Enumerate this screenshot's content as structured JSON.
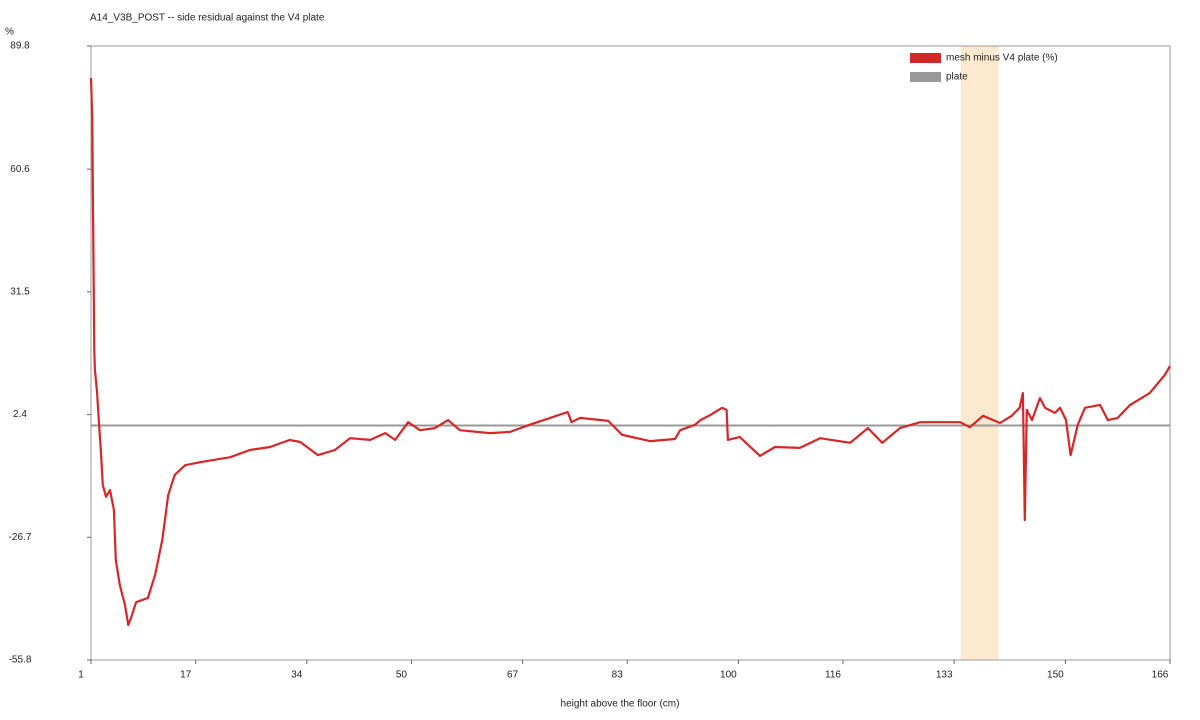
{
  "chart_data": {
    "type": "line",
    "title": "A14_V3B_POST -- side residual against the V4 plate",
    "x_label": "height above the floor (cm)",
    "y_label": "%",
    "xlim": [
      1,
      166
    ],
    "xticks": [
      1,
      17,
      34,
      50,
      67,
      83,
      100,
      116,
      133,
      150,
      166
    ],
    "ylim": [
      -55.8,
      89.8
    ],
    "yticks": [
      -55.8,
      -26.7,
      2.4,
      31.5,
      60.6,
      89.8
    ],
    "highlight": {
      "range": [
        134,
        139.8
      ],
      "color": "#fde9cf"
    },
    "reference_line": {
      "name": "plate",
      "value": -0.2,
      "color": "#999999"
    },
    "legend": "top-right",
    "x": [
      1.0,
      1.2,
      1.3,
      1.5,
      1.6,
      1.9,
      2.2,
      2.5,
      2.8,
      3.3,
      3.9,
      4.5,
      4.8,
      5.4,
      6.2,
      6.7,
      7.1,
      7.9,
      9.7,
      10.8,
      11.9,
      12.8,
      13.8,
      15.4,
      17.7,
      22.3,
      25.3,
      28.4,
      31.4,
      33.0,
      35.7,
      38.3,
      40.6,
      43.7,
      46.0,
      47.5,
      49.5,
      51.3,
      53.6,
      55.6,
      57.4,
      62.0,
      65.1,
      68.1,
      71.2,
      73.9,
      74.5,
      75.8,
      80.1,
      82.2,
      86.5,
      90.3,
      91.1,
      93.4,
      94.2,
      95.7,
      97.5,
      98.2,
      98.4,
      100.2,
      103.3,
      105.6,
      109.4,
      112.5,
      117.1,
      119.8,
      122.0,
      124.7,
      127.8,
      133.9,
      135.4,
      137.4,
      140.0,
      141.8,
      143.0,
      143.5,
      143.8,
      144.1,
      144.9,
      146.1,
      146.9,
      148.4,
      149.2,
      150.1,
      150.8,
      151.9,
      153.0,
      155.3,
      156.5,
      158.0,
      159.9,
      162.9,
      165.2,
      166.0
    ],
    "series": [
      {
        "name": "mesh minus V4 plate (%)",
        "color": "#d62728",
        "values": [
          82.2,
          72.3,
          50.9,
          17.7,
          13.0,
          8.2,
          1.1,
          -6.0,
          -14.3,
          -17.1,
          -15.5,
          -20.2,
          -32.1,
          -38.0,
          -42.8,
          -47.5,
          -45.9,
          -42.1,
          -41.1,
          -35.6,
          -27.3,
          -16.7,
          -11.9,
          -9.6,
          -8.9,
          -7.7,
          -6.0,
          -5.3,
          -3.6,
          -4.1,
          -7.2,
          -6.0,
          -3.2,
          -3.6,
          -2.0,
          -3.6,
          0.6,
          -1.3,
          -0.8,
          1.1,
          -1.3,
          -2.0,
          -1.7,
          0.0,
          1.6,
          3.0,
          0.6,
          1.6,
          0.9,
          -2.4,
          -3.9,
          -3.4,
          -1.3,
          0.0,
          1.1,
          2.3,
          4.0,
          3.5,
          -3.6,
          -2.9,
          -7.4,
          -5.3,
          -5.5,
          -3.2,
          -4.3,
          -0.8,
          -4.3,
          -0.8,
          0.6,
          0.6,
          -0.6,
          2.1,
          0.4,
          2.1,
          4.0,
          7.5,
          -22.6,
          3.5,
          1.1,
          6.3,
          4.0,
          2.8,
          4.0,
          1.1,
          -7.2,
          0.0,
          4.0,
          4.7,
          1.1,
          1.6,
          4.7,
          7.5,
          11.8,
          13.9
        ]
      }
    ]
  }
}
